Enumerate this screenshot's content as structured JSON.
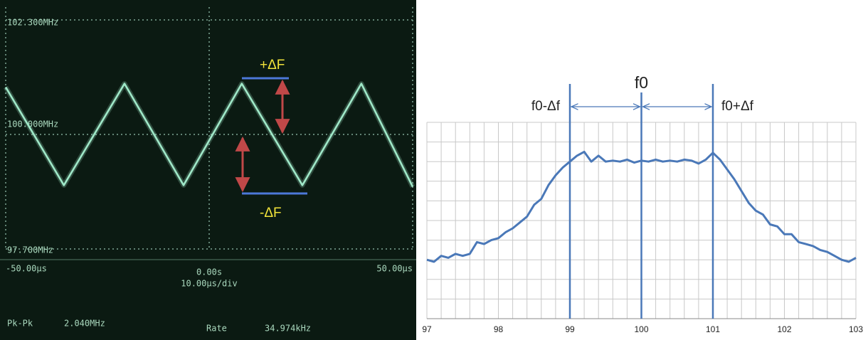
{
  "chart_data": [
    {
      "type": "line",
      "x": [
        -50,
        -35.7,
        -20.8,
        -6.3,
        8.0,
        22.9,
        37.4,
        50
      ],
      "series": [
        {
          "color": "#9fe8c8",
          "values": [
            100.95,
            98.98,
            101.02,
            98.98,
            101.02,
            98.98,
            101.02,
            98.95
          ]
        }
      ],
      "xlim": [
        -50,
        50
      ],
      "ylim": [
        97.7,
        102.3
      ],
      "xticks": [
        {
          "value": -50,
          "label": "-50.00μs"
        },
        {
          "value": 0,
          "label": "0.00s"
        },
        {
          "value": 50,
          "label": "50.00μs"
        }
      ],
      "yticks": [
        {
          "value": 102.3,
          "label": "102.300MHz"
        },
        {
          "value": 100,
          "label": "100.000MHz"
        },
        {
          "value": 97.7,
          "label": "97.700MHz"
        }
      ],
      "timebase": "10.00μs/div",
      "readouts": [
        {
          "label": "Pk-Pk",
          "value": "2.040MHz"
        },
        {
          "label": "Rate",
          "value": "34.974kHz"
        }
      ],
      "annotations": [
        "+ΔF",
        "-ΔF"
      ]
    },
    {
      "type": "line",
      "x": [
        97.0,
        97.1,
        97.2,
        97.3,
        97.4,
        97.5,
        97.6,
        97.7,
        97.8,
        97.9,
        98.0,
        98.1,
        98.2,
        98.3,
        98.4,
        98.5,
        98.6,
        98.7,
        98.8,
        98.9,
        99.0,
        99.1,
        99.2,
        99.3,
        99.4,
        99.5,
        99.6,
        99.7,
        99.8,
        99.9,
        100.0,
        100.1,
        100.2,
        100.3,
        100.4,
        100.5,
        100.6,
        100.7,
        100.8,
        100.9,
        101.0,
        101.1,
        101.2,
        101.3,
        101.4,
        101.5,
        101.6,
        101.7,
        101.8,
        101.9,
        102.0,
        102.1,
        102.2,
        102.3,
        102.4,
        102.5,
        102.6,
        102.7,
        102.8,
        102.9,
        103.0
      ],
      "series": [
        {
          "color": "#4a78b8",
          "values": [
            3.0,
            2.9,
            3.2,
            3.1,
            3.3,
            3.2,
            3.3,
            3.9,
            3.8,
            4.0,
            4.1,
            4.4,
            4.6,
            4.9,
            5.2,
            5.8,
            6.1,
            6.8,
            7.3,
            7.7,
            8.0,
            8.3,
            8.5,
            8.0,
            8.3,
            8.0,
            8.05,
            8.0,
            8.1,
            7.95,
            8.05,
            8.0,
            8.1,
            8.0,
            8.05,
            8.0,
            8.1,
            8.05,
            7.9,
            8.1,
            8.45,
            8.1,
            7.6,
            7.1,
            6.5,
            5.9,
            5.5,
            5.3,
            4.8,
            4.7,
            4.3,
            4.3,
            3.9,
            3.8,
            3.7,
            3.5,
            3.4,
            3.2,
            3.0,
            2.9,
            3.1
          ]
        }
      ],
      "xlim": [
        97,
        103
      ],
      "ylim": [
        0,
        10
      ],
      "xticks": [
        97,
        98,
        99,
        100,
        101,
        102,
        103
      ],
      "grid": true,
      "annotations": [
        {
          "text": "f0-Δf",
          "x": 99
        },
        {
          "text": "f0",
          "x": 100
        },
        {
          "text": "f0+Δf",
          "x": 101
        }
      ]
    }
  ]
}
